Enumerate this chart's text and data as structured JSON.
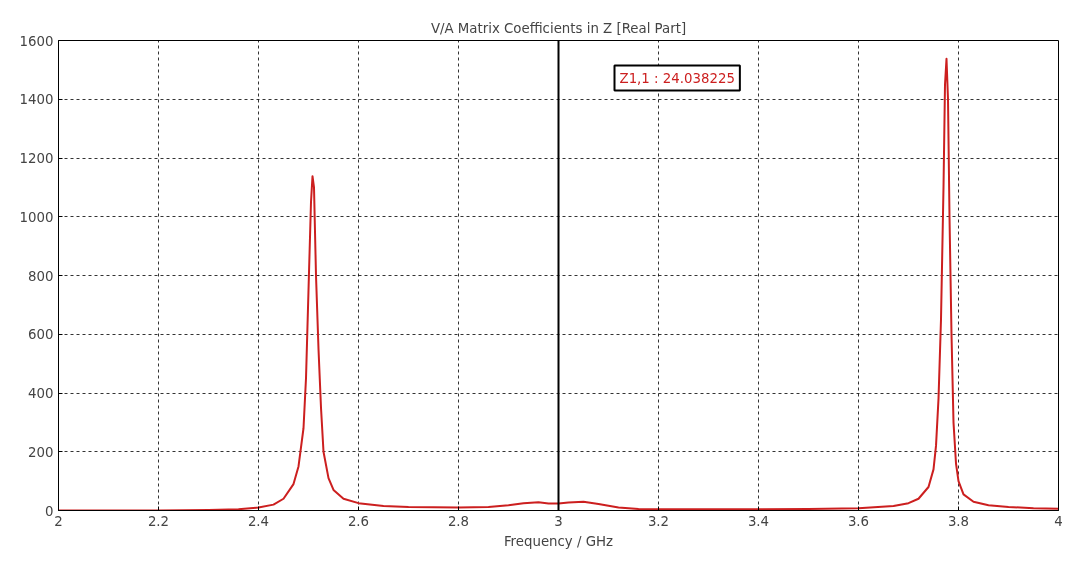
{
  "chart_data": {
    "type": "line",
    "title": "V/A Matrix Coefficients in Z [Real Part]",
    "xlabel": "Frequency / GHz",
    "x": [
      2.0,
      2.2,
      2.3,
      2.36,
      2.4,
      2.43,
      2.45,
      2.47,
      2.48,
      2.49,
      2.495,
      2.5,
      2.505,
      2.508,
      2.511,
      2.515,
      2.52,
      2.525,
      2.53,
      2.54,
      2.55,
      2.57,
      2.6,
      2.65,
      2.7,
      2.8,
      2.86,
      2.9,
      2.93,
      2.96,
      2.98,
      3.0,
      3.02,
      3.05,
      3.08,
      3.12,
      3.16,
      3.2,
      3.4,
      3.5,
      3.6,
      3.67,
      3.7,
      3.72,
      3.74,
      3.75,
      3.755,
      3.76,
      3.765,
      3.77,
      3.773,
      3.776,
      3.779,
      3.782,
      3.786,
      3.79,
      3.795,
      3.8,
      3.81,
      3.83,
      3.86,
      3.9,
      3.95,
      4.0
    ],
    "series": [
      {
        "color": "#cc1f1f",
        "values": [
          0,
          0,
          2,
          4,
          10,
          20,
          40,
          90,
          150,
          280,
          450,
          750,
          1050,
          1138,
          1100,
          800,
          550,
          350,
          200,
          110,
          70,
          40,
          25,
          15,
          12,
          10,
          12,
          18,
          25,
          28,
          24,
          24,
          27,
          30,
          22,
          10,
          5,
          4,
          4,
          5,
          8,
          15,
          25,
          40,
          80,
          140,
          220,
          380,
          650,
          1100,
          1450,
          1538,
          1400,
          1000,
          600,
          300,
          160,
          100,
          55,
          30,
          18,
          12,
          8,
          6
        ]
      }
    ],
    "xlim": [
      2,
      4
    ],
    "ylim": [
      0,
      1600
    ],
    "xticks": [
      2,
      2.2,
      2.4,
      2.6,
      2.8,
      3,
      3.2,
      3.4,
      3.6,
      3.8,
      4
    ],
    "yticks": [
      0,
      200,
      400,
      600,
      800,
      1000,
      1200,
      1400,
      1600
    ],
    "grid": true,
    "line_style": "solid",
    "marker": "none",
    "ref_lines": [
      {
        "axis": "x",
        "value": 3,
        "color": "#000000"
      }
    ],
    "annotations": [
      "Z1,1 : 24.038225"
    ]
  }
}
